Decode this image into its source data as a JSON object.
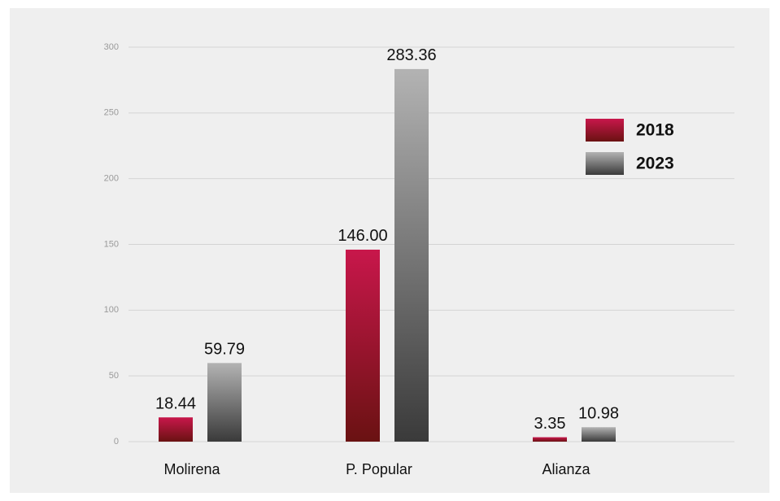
{
  "chart_data": {
    "type": "bar",
    "categories": [
      "Molirena",
      "P. Popular",
      "Alianza"
    ],
    "series": [
      {
        "name": "2018",
        "color": [
          "#c8174b",
          "#6a1212"
        ],
        "values": [
          18.44,
          146,
          3.35
        ],
        "value_labels": [
          "18.44",
          "146.00",
          "3.35"
        ]
      },
      {
        "name": "2023",
        "color": [
          "#b3b3b3",
          "#3a3a3a"
        ],
        "values": [
          59.79,
          283.36,
          10.98
        ],
        "value_labels": [
          "59.79",
          "283.36",
          "10.98"
        ]
      }
    ],
    "ylim": [
      0,
      300
    ],
    "yticks": [
      0,
      50,
      100,
      150,
      200,
      250,
      300
    ],
    "grid": true,
    "legend": "upper right"
  }
}
